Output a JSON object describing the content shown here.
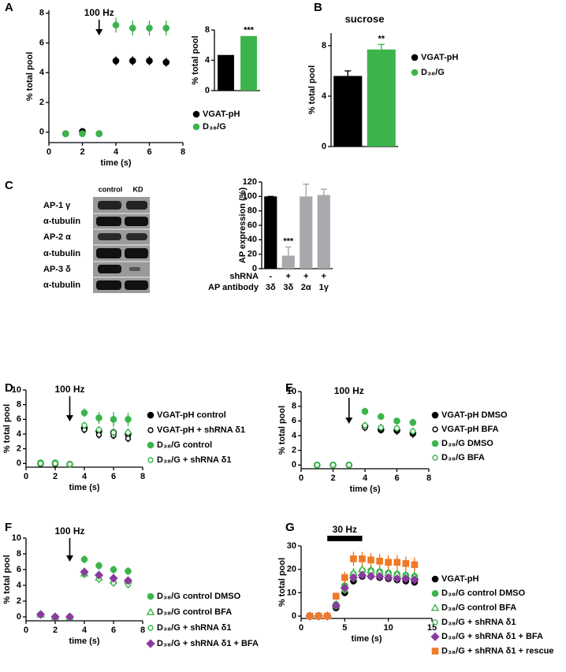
{
  "panels": [
    "A",
    "B",
    "C",
    "D",
    "E",
    "F",
    "G"
  ],
  "blot": {
    "columns": [
      "control",
      "KD"
    ],
    "rows": [
      "AP-1 γ",
      "α-tubulin",
      "AP-2 α",
      "α-tubulin",
      "AP-3 δ",
      "α-tubulin"
    ]
  },
  "chart_data": [
    {
      "type": "scatter",
      "annotation": "100 Hz",
      "xlabel": "time (s)",
      "ylabel": "% total pool",
      "x": [
        1,
        2,
        3,
        4,
        5,
        6,
        7
      ],
      "xlim": [
        0,
        8
      ],
      "xticks": [
        0,
        2,
        4,
        6,
        8
      ],
      "ylim": [
        -0.7,
        8.2
      ],
      "yticks": [
        0,
        2,
        4,
        6,
        8
      ],
      "series": [
        {
          "name": "VGAT-pH",
          "color": "#000000",
          "marker": "circle",
          "values": [
            -0.1,
            0.05,
            -0.1,
            4.8,
            4.8,
            4.8,
            4.7
          ],
          "errors": [
            0.2,
            0.2,
            0.2,
            0.3,
            0.3,
            0.3,
            0.3
          ]
        },
        {
          "name": "D₃₈/G",
          "color": "#3cb44b",
          "marker": "circle",
          "values": [
            -0.1,
            -0.1,
            -0.1,
            7.2,
            7.0,
            7.0,
            7.0
          ],
          "errors": [
            0.2,
            0.2,
            0.2,
            0.5,
            0.5,
            0.5,
            0.5
          ]
        }
      ]
    },
    {
      "type": "bar",
      "categories": [
        null,
        null
      ],
      "values": [
        4.7,
        7.2
      ],
      "colors": [
        "#000000",
        "#3cb44b"
      ],
      "significance": [
        null,
        "***"
      ],
      "ylabel": "% total pool",
      "ylim": [
        0,
        8
      ],
      "yticks": [
        0,
        4,
        8
      ]
    },
    {
      "type": "bar",
      "title": "sucrose",
      "categories": [
        null,
        null
      ],
      "values": [
        5.6,
        7.7
      ],
      "errors": [
        0.4,
        0.4
      ],
      "colors": [
        "#000000",
        "#3cb44b"
      ],
      "significance": [
        null,
        "**"
      ],
      "legend": [
        "VGAT-pH",
        "D₃₈/G"
      ],
      "ylabel": "% total pool",
      "ylim": [
        0,
        9
      ],
      "yticks": [
        0,
        4,
        8
      ]
    },
    {
      "type": "bar",
      "category_rows": [
        {
          "name": "shRNA",
          "labels": [
            "-",
            "+",
            "+",
            "+"
          ]
        },
        {
          "name": "AP antibody",
          "labels": [
            "3δ",
            "3δ",
            "2α",
            "1γ"
          ]
        }
      ],
      "values": [
        100,
        18,
        100,
        102
      ],
      "errors": [
        0,
        12,
        17,
        8
      ],
      "colors": [
        "#000000",
        "#a7a9ac",
        "#a7a9ac",
        "#a7a9ac"
      ],
      "significance": [
        null,
        "***",
        null,
        null
      ],
      "ylabel": "AP expression (%)",
      "ylim": [
        0,
        120
      ],
      "yticks": [
        0,
        20,
        40,
        60,
        80,
        100,
        120
      ]
    },
    {
      "type": "scatter",
      "annotation": "100 Hz",
      "xlabel": "time (s)",
      "ylabel": "% total pool",
      "x": [
        1,
        2,
        3,
        4,
        5,
        6,
        7
      ],
      "xlim": [
        0,
        8
      ],
      "xticks": [
        0,
        2,
        4,
        6,
        8
      ],
      "ylim": [
        -0.5,
        10
      ],
      "yticks": [
        0,
        2,
        4,
        6,
        8,
        10
      ],
      "series": [
        {
          "name": "VGAT-pH control",
          "color": "#000000",
          "marker": "circle",
          "values": [
            0,
            0,
            -0.1,
            4.8,
            4.4,
            4.2,
            4.0
          ],
          "errors": [
            0.3,
            0.3,
            0.3,
            0.5,
            0.5,
            0.6,
            0.6
          ]
        },
        {
          "name": "VGAT-pH + shRNA δ1",
          "color": "#000000",
          "marker": "open-circle",
          "values": [
            0,
            -0.1,
            -0.1,
            4.6,
            3.9,
            3.8,
            3.4
          ],
          "errors": [
            0.3,
            0.3,
            0.3,
            0.5,
            0.5,
            0.5,
            0.5
          ]
        },
        {
          "name": "D₃₈/G control",
          "color": "#3cb44b",
          "marker": "circle",
          "values": [
            0.1,
            0.1,
            -0.1,
            6.9,
            6.2,
            6.0,
            6.0
          ],
          "errors": [
            0.3,
            0.3,
            0.3,
            0.6,
            0.8,
            1.0,
            0.9
          ]
        },
        {
          "name": "D₃₈/G + shRNA δ1",
          "color": "#3cb44b",
          "marker": "open-circle",
          "values": [
            0,
            0,
            -0.1,
            5.2,
            4.6,
            4.2,
            4.2
          ],
          "errors": [
            0.3,
            0.3,
            0.3,
            0.5,
            0.5,
            0.6,
            0.6
          ]
        }
      ]
    },
    {
      "type": "scatter",
      "annotation": "100 Hz",
      "xlabel": "time (s)",
      "ylabel": "% total pool",
      "x": [
        1,
        2,
        3,
        4,
        5,
        6,
        7
      ],
      "xlim": [
        0,
        8
      ],
      "xticks": [
        0,
        2,
        4,
        6,
        8
      ],
      "ylim": [
        -0.5,
        10
      ],
      "yticks": [
        0,
        2,
        4,
        6,
        8,
        10
      ],
      "series": [
        {
          "name": "VGAT-pH DMSO",
          "color": "#000000",
          "marker": "circle",
          "values": [
            0,
            0,
            0,
            5.3,
            4.8,
            4.7,
            4.3
          ],
          "errors": [
            0.2,
            0.2,
            0.2,
            0.5,
            0.5,
            0.6,
            0.6
          ]
        },
        {
          "name": "VGAT-pH BFA",
          "color": "#000000",
          "marker": "open-circle",
          "values": [
            0,
            0,
            0,
            5.1,
            5.1,
            4.9,
            4.5
          ],
          "errors": [
            0.2,
            0.2,
            0.2,
            0.5,
            0.5,
            0.5,
            0.5
          ]
        },
        {
          "name": "D₃₈/G DMSO",
          "color": "#3cb44b",
          "marker": "circle",
          "values": [
            0,
            0,
            0,
            7.3,
            6.6,
            6.0,
            5.8
          ],
          "errors": [
            0.2,
            0.2,
            0.2,
            0.5,
            0.4,
            0.4,
            0.5
          ]
        },
        {
          "name": "D₃₈/G BFA",
          "color": "#3cb44b",
          "marker": "open-circle",
          "values": [
            0,
            0,
            0,
            5.4,
            5.1,
            5.0,
            4.6
          ],
          "errors": [
            0.2,
            0.2,
            0.2,
            0.5,
            0.5,
            0.5,
            0.5
          ]
        }
      ]
    },
    {
      "type": "scatter",
      "annotation": "100 Hz",
      "xlabel": "time (s)",
      "ylabel": "% total pool",
      "x": [
        1,
        2,
        3,
        4,
        5,
        6,
        7
      ],
      "xlim": [
        0,
        8
      ],
      "xticks": [
        0,
        2,
        4,
        6,
        8
      ],
      "ylim": [
        -0.5,
        10
      ],
      "yticks": [
        0,
        2,
        4,
        6,
        8,
        10
      ],
      "series": [
        {
          "name": "D₃₈/G control DMSO",
          "color": "#3cb44b",
          "marker": "circle",
          "values": [
            0.3,
            0,
            0,
            7.3,
            6.5,
            6.0,
            5.8
          ],
          "errors": [
            0.2,
            0.2,
            0.2,
            0.5,
            0.5,
            0.5,
            0.5
          ]
        },
        {
          "name": "D₃₈/G control BFA",
          "color": "#3cb44b",
          "marker": "triangle",
          "values": [
            0.3,
            0,
            -0.1,
            5.5,
            5.0,
            4.6,
            4.6
          ],
          "errors": [
            0.2,
            0.2,
            0.2,
            0.5,
            0.5,
            0.5,
            0.5
          ]
        },
        {
          "name": "D₃₈/G + shRNA δ1",
          "color": "#3cb44b",
          "marker": "open-circle",
          "values": [
            0.3,
            -0.1,
            -0.1,
            5.4,
            4.8,
            4.3,
            4.1
          ],
          "errors": [
            0.2,
            0.2,
            0.2,
            0.5,
            0.5,
            0.5,
            0.5
          ]
        },
        {
          "name": "D₃₈/G + shRNA δ1 + BFA",
          "color": "#8b3a9e",
          "marker": "diamond",
          "values": [
            0.3,
            0,
            0,
            5.7,
            5.3,
            4.9,
            4.6
          ],
          "errors": [
            0.2,
            0.2,
            0.2,
            0.5,
            0.5,
            0.5,
            0.5
          ]
        }
      ]
    },
    {
      "type": "scatter",
      "annotation": "30 Hz",
      "xlabel": "time (s)",
      "ylabel": "% total pool",
      "x": [
        1,
        2,
        3,
        4,
        5,
        6,
        7,
        8,
        9,
        10,
        11,
        12,
        13
      ],
      "xlim": [
        0,
        15
      ],
      "xticks": [
        0,
        5,
        10,
        15
      ],
      "ylim": [
        -1,
        30
      ],
      "yticks": [
        0,
        10,
        20,
        30
      ],
      "series": [
        {
          "name": "VGAT-pH",
          "color": "#000000",
          "marker": "circle",
          "values": [
            0,
            0,
            0,
            3.5,
            10,
            15,
            17,
            17,
            16.5,
            16,
            15.5,
            15,
            14.5
          ],
          "errors": [
            0.3,
            0.3,
            0.3,
            1,
            1.5,
            1.5,
            1.5,
            1.5,
            1.5,
            1.5,
            1.5,
            1.5,
            1.5
          ]
        },
        {
          "name": "D₃₈/G control DMSO",
          "color": "#3cb44b",
          "marker": "circle",
          "values": [
            0,
            0,
            0,
            5,
            13,
            18,
            19.5,
            19.5,
            19,
            18.5,
            18,
            17.5,
            17
          ],
          "errors": [
            0.3,
            0.3,
            0.3,
            1,
            2,
            2,
            2,
            2,
            2,
            2,
            2,
            2,
            2
          ]
        },
        {
          "name": "D₃₈/G control BFA",
          "color": "#3cb44b",
          "marker": "triangle",
          "values": [
            0,
            0,
            0,
            5,
            13,
            18.5,
            20,
            19.5,
            19,
            18.5,
            18,
            17.5,
            17
          ],
          "errors": [
            0.3,
            0.3,
            0.3,
            1,
            2,
            2,
            2,
            2,
            2,
            2,
            2,
            2,
            2
          ]
        },
        {
          "name": "D₃₈/G + shRNA δ1",
          "color": "#3cb44b",
          "marker": "open-circle",
          "values": [
            0,
            0,
            0,
            4,
            11,
            16,
            17.5,
            17,
            17,
            16.5,
            16,
            16,
            15.5
          ],
          "errors": [
            0.3,
            0.3,
            0.3,
            1,
            1.5,
            1.5,
            1.5,
            1.5,
            1.5,
            1.5,
            1.5,
            1.5,
            1.5
          ]
        },
        {
          "name": "D₃₈/G + shRNA δ1 + BFA",
          "color": "#8b3a9e",
          "marker": "diamond",
          "values": [
            0,
            0,
            0,
            4.5,
            12,
            16.5,
            17.5,
            17,
            17,
            16.5,
            16,
            16,
            15.5
          ],
          "errors": [
            0.3,
            0.3,
            0.3,
            1,
            1.5,
            1.5,
            1.5,
            1.5,
            1.5,
            1.5,
            1.5,
            1.5,
            1.5
          ]
        },
        {
          "name": "D₃₈/G + shRNA δ1 + rescue",
          "color": "#f07a26",
          "marker": "square",
          "values": [
            0,
            0,
            0,
            8.5,
            16.5,
            24.5,
            24.5,
            24,
            23.5,
            23,
            23,
            22.5,
            22
          ],
          "errors": [
            0.3,
            0.3,
            0.3,
            1.5,
            2.5,
            3,
            3,
            3,
            3,
            3,
            3,
            3,
            3
          ]
        }
      ]
    }
  ]
}
